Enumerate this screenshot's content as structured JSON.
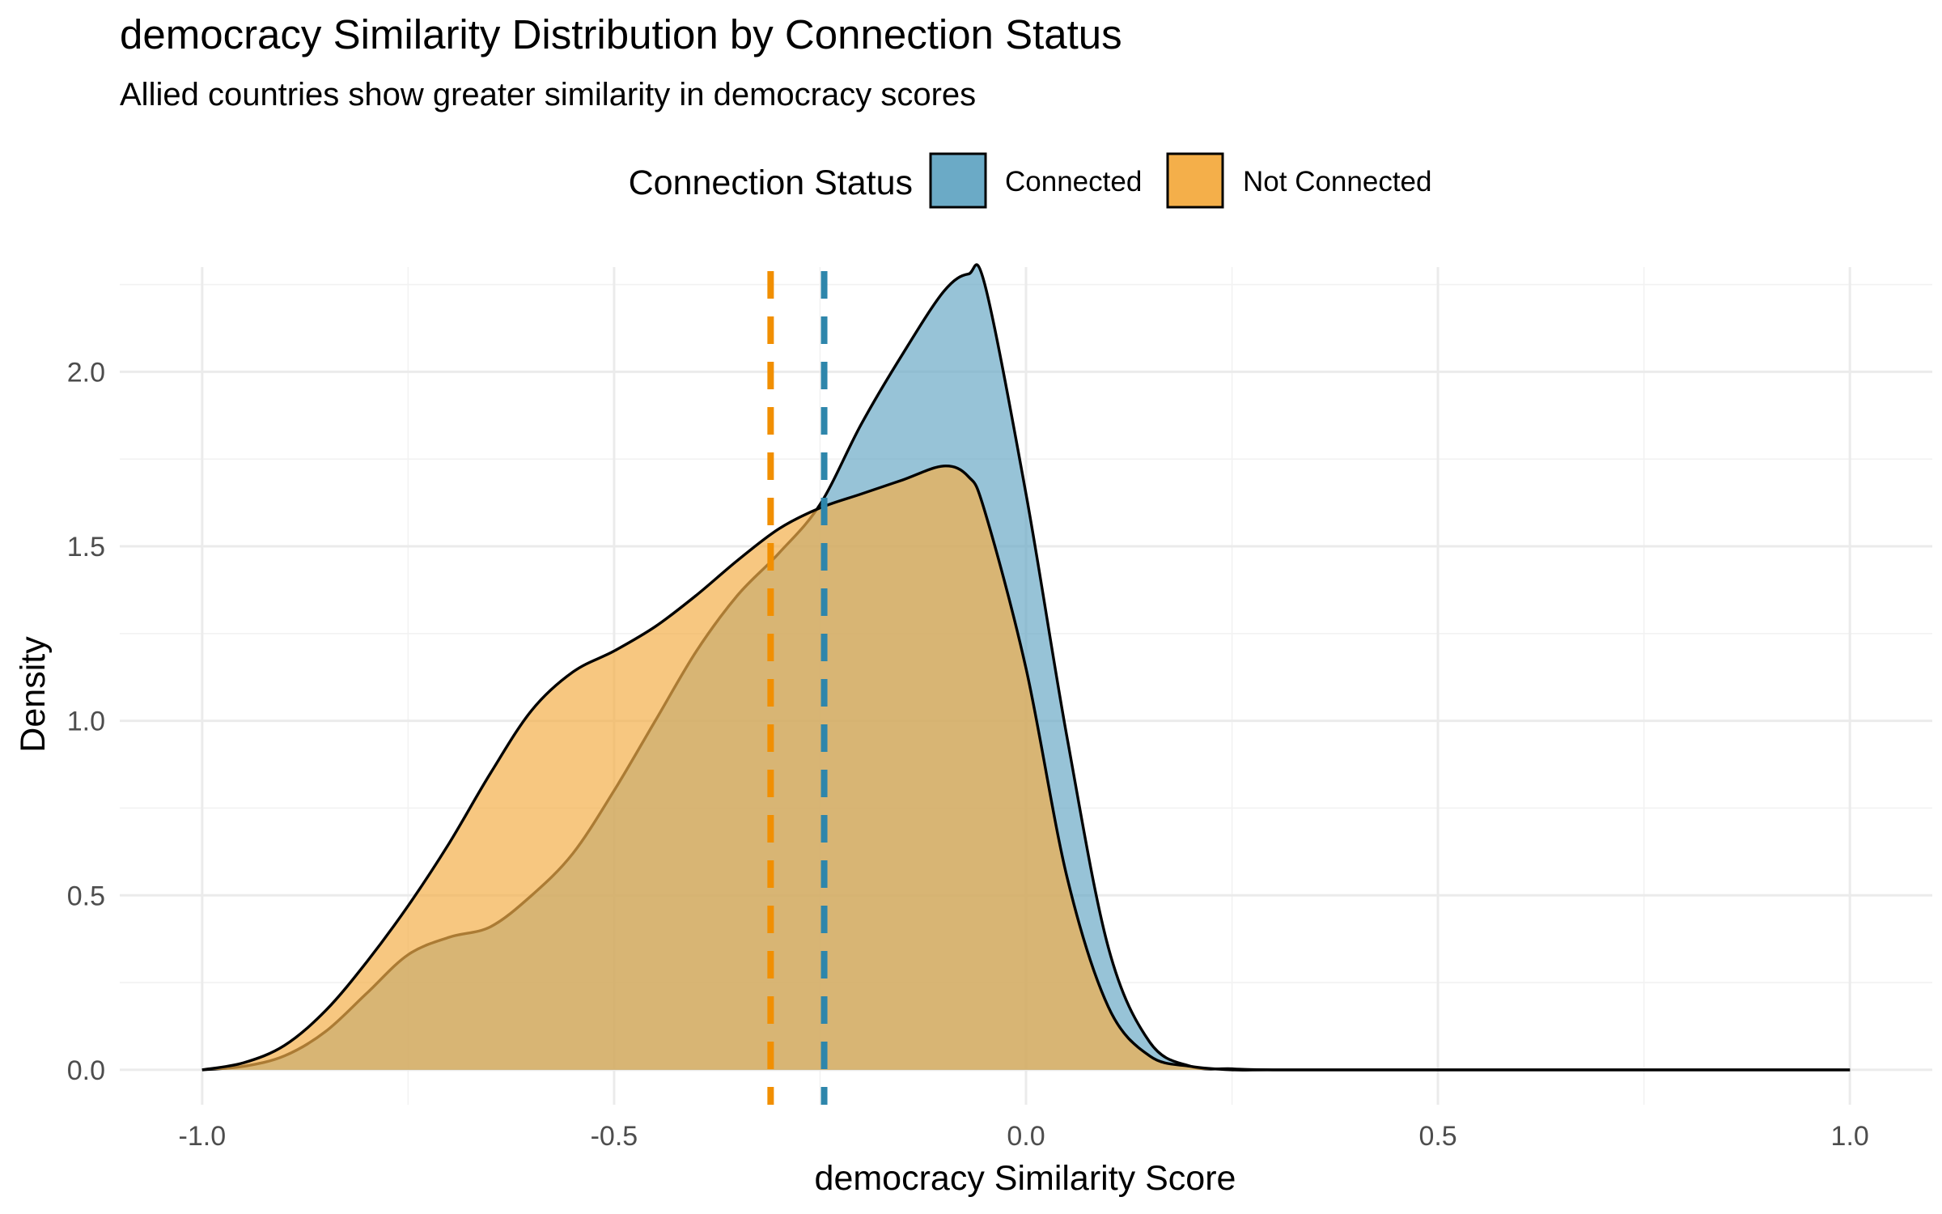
{
  "chart_data": {
    "type": "area",
    "title": "democracy Similarity Distribution by Connection Status",
    "subtitle": "Allied countries show greater similarity in democracy scores",
    "xlabel": "democracy Similarity Score",
    "ylabel": "Density",
    "xlim": [
      -1.1,
      1.1
    ],
    "ylim": [
      -0.1,
      2.3
    ],
    "x_ticks": [
      -1.0,
      -0.5,
      0.0,
      0.5,
      1.0
    ],
    "x_tick_labels": [
      "-1.0",
      "-0.5",
      "0.0",
      "0.5",
      "1.0"
    ],
    "y_ticks": [
      0.0,
      0.5,
      1.0,
      1.5,
      2.0
    ],
    "y_tick_labels": [
      "0.0",
      "0.5",
      "1.0",
      "1.5",
      "2.0"
    ],
    "grid": true,
    "legend": {
      "title": "Connection Status",
      "position": "top"
    },
    "series": [
      {
        "name": "Connected",
        "color": "#2E86AB",
        "fill": "#6BAAC6",
        "mean": -0.245,
        "x": [
          -1.0,
          -0.95,
          -0.9,
          -0.85,
          -0.8,
          -0.75,
          -0.7,
          -0.65,
          -0.6,
          -0.55,
          -0.5,
          -0.45,
          -0.4,
          -0.35,
          -0.3,
          -0.25,
          -0.2,
          -0.15,
          -0.1,
          -0.07,
          -0.05,
          0.0,
          0.05,
          0.1,
          0.15,
          0.2,
          0.25,
          0.3,
          0.5,
          1.0
        ],
        "y": [
          0.0,
          0.01,
          0.04,
          0.11,
          0.22,
          0.33,
          0.38,
          0.41,
          0.5,
          0.62,
          0.8,
          1.0,
          1.2,
          1.36,
          1.48,
          1.62,
          1.85,
          2.05,
          2.23,
          2.28,
          2.25,
          1.65,
          0.95,
          0.35,
          0.08,
          0.01,
          0.003,
          0.0,
          0.0,
          0.0
        ]
      },
      {
        "name": "Not Connected",
        "color": "#F18F01",
        "fill": "#F4AF4A",
        "mean": -0.31,
        "x": [
          -1.0,
          -0.95,
          -0.9,
          -0.85,
          -0.8,
          -0.75,
          -0.7,
          -0.65,
          -0.6,
          -0.55,
          -0.5,
          -0.45,
          -0.4,
          -0.35,
          -0.3,
          -0.25,
          -0.2,
          -0.15,
          -0.1,
          -0.07,
          -0.05,
          0.0,
          0.05,
          0.1,
          0.15,
          0.2,
          0.25,
          0.3,
          0.5,
          1.0
        ],
        "y": [
          0.0,
          0.02,
          0.07,
          0.17,
          0.31,
          0.47,
          0.65,
          0.85,
          1.03,
          1.14,
          1.2,
          1.27,
          1.36,
          1.46,
          1.55,
          1.61,
          1.65,
          1.69,
          1.73,
          1.7,
          1.6,
          1.15,
          0.55,
          0.18,
          0.04,
          0.01,
          0.0,
          0.0,
          0.0,
          0.0
        ]
      }
    ]
  }
}
